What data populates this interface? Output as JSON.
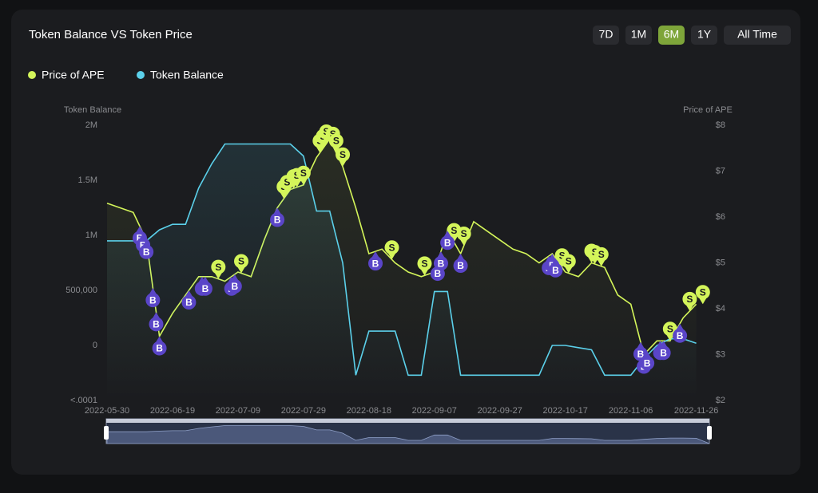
{
  "chart_data": {
    "type": "line",
    "title": "Token Balance VS Token Price",
    "range_buttons": [
      "7D",
      "1M",
      "6M",
      "1Y",
      "All Time"
    ],
    "active_range": "6M",
    "y_label": "Token Balance",
    "y2_label": "Price of APE",
    "x": [
      "2022-05-30",
      "2022-06-03",
      "2022-06-07",
      "2022-06-11",
      "2022-06-15",
      "2022-06-19",
      "2022-06-23",
      "2022-06-27",
      "2022-07-01",
      "2022-07-05",
      "2022-07-09",
      "2022-07-13",
      "2022-07-17",
      "2022-07-21",
      "2022-07-25",
      "2022-07-29",
      "2022-08-02",
      "2022-08-06",
      "2022-08-10",
      "2022-08-14",
      "2022-08-18",
      "2022-08-22",
      "2022-08-26",
      "2022-08-30",
      "2022-09-03",
      "2022-09-07",
      "2022-09-11",
      "2022-09-15",
      "2022-09-19",
      "2022-09-23",
      "2022-09-27",
      "2022-10-01",
      "2022-10-05",
      "2022-10-09",
      "2022-10-13",
      "2022-10-17",
      "2022-10-21",
      "2022-10-25",
      "2022-10-29",
      "2022-11-02",
      "2022-11-06",
      "2022-11-10",
      "2022-11-14",
      "2022-11-18",
      "2022-11-22",
      "2022-11-26"
    ],
    "xlim": [
      "2022-05-30",
      "2022-11-30"
    ],
    "xticks": [
      "2022-05-30",
      "2022-06-19",
      "2022-07-09",
      "2022-07-29",
      "2022-08-18",
      "2022-09-07",
      "2022-09-27",
      "2022-10-17",
      "2022-11-06",
      "2022-11-26"
    ],
    "ylim": [
      -500000,
      2000000
    ],
    "yticks": [
      {
        "value": -500000,
        "label": "<.0001"
      },
      0,
      {
        "value": 500000,
        "label": "500,000"
      },
      {
        "value": 1000000,
        "label": "1M"
      },
      {
        "value": 1500000,
        "label": "1.5M"
      },
      {
        "value": 2000000,
        "label": "2M"
      }
    ],
    "y2lim": [
      2,
      8
    ],
    "y2ticks": [
      {
        "value": 2,
        "label": "$2"
      },
      {
        "value": 3,
        "label": "$3"
      },
      {
        "value": 4,
        "label": "$4"
      },
      {
        "value": 5,
        "label": "$5"
      },
      {
        "value": 6,
        "label": "$6"
      },
      {
        "value": 7,
        "label": "$7"
      },
      {
        "value": 8,
        "label": "$8"
      }
    ],
    "series": [
      {
        "name": "Price of APE",
        "color": "#d4f55a",
        "axis": "y2",
        "values": [
          6.3,
          6.2,
          6.1,
          5.5,
          3.4,
          3.9,
          4.3,
          4.7,
          4.7,
          4.6,
          4.8,
          4.7,
          5.5,
          6.2,
          6.6,
          6.7,
          7.3,
          7.7,
          7.1,
          6.2,
          5.2,
          5.3,
          5.0,
          4.8,
          4.7,
          4.8,
          5.7,
          5.2,
          5.9,
          5.7,
          5.5,
          5.3,
          5.2,
          5.0,
          5.2,
          4.8,
          4.7,
          5.0,
          4.9,
          4.3,
          4.1,
          3.0,
          3.3,
          3.3,
          3.8,
          4.1
        ]
      },
      {
        "name": "Token Balance",
        "color": "#5bd0ea",
        "values": [
          950000,
          950000,
          950000,
          950000,
          1050000,
          1100000,
          1100000,
          1430000,
          1650000,
          1830000,
          1830000,
          1830000,
          1830000,
          1830000,
          1830000,
          1720000,
          1220000,
          1220000,
          750000,
          -270000,
          130000,
          130000,
          130000,
          -270000,
          -270000,
          490000,
          490000,
          -270000,
          -270000,
          -270000,
          -270000,
          -270000,
          -270000,
          -270000,
          0,
          0,
          -20000,
          -40000,
          -270000,
          -270000,
          -270000,
          -120000,
          0,
          60000,
          60000,
          20000
        ]
      }
    ],
    "buys": {
      "label": "B",
      "dates": [
        "2022-06-09",
        "2022-06-10",
        "2022-06-11",
        "2022-06-13",
        "2022-06-14",
        "2022-06-15",
        "2022-06-24",
        "2022-06-28",
        "2022-06-29",
        "2022-07-07",
        "2022-07-08",
        "2022-07-21",
        "2022-08-20",
        "2022-09-08",
        "2022-09-09",
        "2022-09-11",
        "2022-09-15",
        "2022-10-12",
        "2022-10-13",
        "2022-10-14",
        "2022-11-09",
        "2022-11-10",
        "2022-11-11",
        "2022-11-15",
        "2022-11-16",
        "2022-11-21"
      ]
    },
    "sells": {
      "label": "S",
      "dates": [
        "2022-07-03",
        "2022-07-10",
        "2022-07-23",
        "2022-07-24",
        "2022-07-26",
        "2022-07-27",
        "2022-07-29",
        "2022-08-03",
        "2022-08-04",
        "2022-08-05",
        "2022-08-07",
        "2022-08-08",
        "2022-08-10",
        "2022-08-25",
        "2022-09-04",
        "2022-09-13",
        "2022-09-16",
        "2022-10-16",
        "2022-10-18",
        "2022-10-25",
        "2022-10-26",
        "2022-10-28",
        "2022-11-18",
        "2022-11-24",
        "2022-11-28"
      ]
    }
  }
}
